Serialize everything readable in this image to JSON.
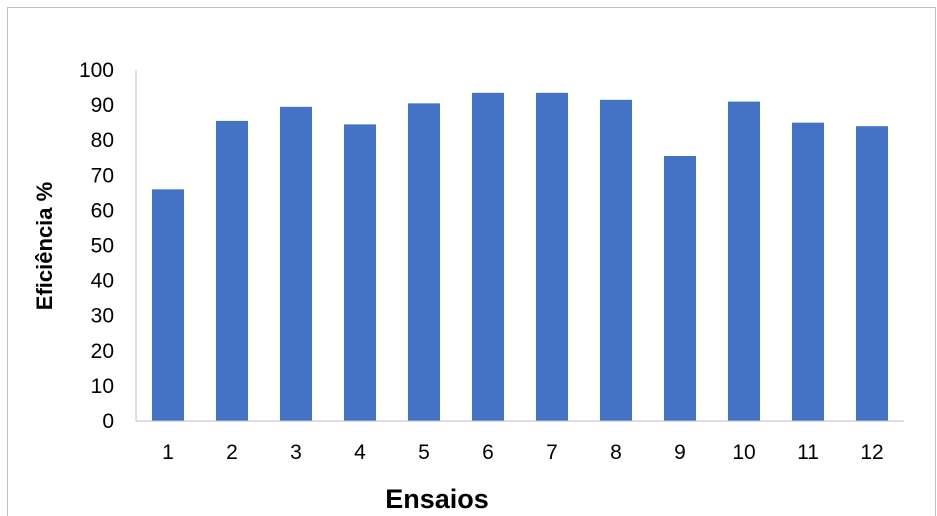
{
  "chart_data": {
    "type": "bar",
    "title": "",
    "xlabel": "Ensaios",
    "ylabel": "Eficiência %",
    "categories": [
      "1",
      "2",
      "3",
      "4",
      "5",
      "6",
      "7",
      "8",
      "9",
      "10",
      "11",
      "12"
    ],
    "values": [
      66,
      85.5,
      89.5,
      84.5,
      90.5,
      93.5,
      93.5,
      91.5,
      75.5,
      91,
      85,
      84
    ],
    "ylim": [
      0,
      100
    ],
    "yticks": [
      "0",
      "10",
      "20",
      "30",
      "40",
      "50",
      "60",
      "70",
      "80",
      "90",
      "100"
    ],
    "grid": false,
    "legend": "none",
    "bar_color": "#4472C4"
  }
}
